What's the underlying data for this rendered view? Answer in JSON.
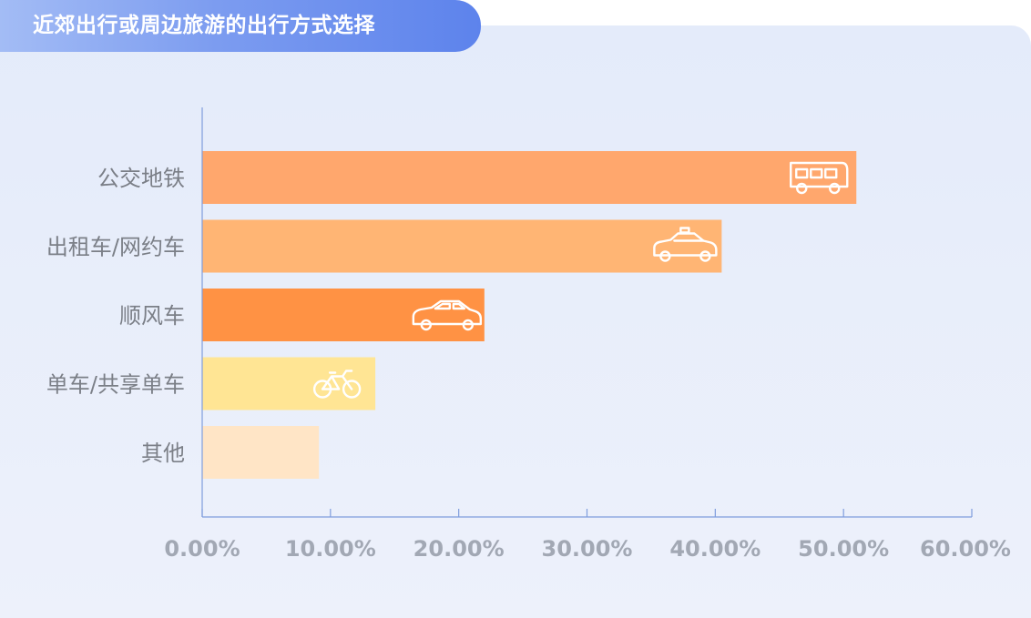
{
  "chart_data": {
    "type": "bar",
    "orientation": "horizontal",
    "title": "近郊出行或周边旅游的出行方式选择",
    "categories": [
      "公交地铁",
      "出租车/网约车",
      "顺风车",
      "单车/共享单车",
      "其他"
    ],
    "values": [
      51,
      40.5,
      22,
      13.5,
      9.1
    ],
    "xlim": [
      0,
      60
    ],
    "ticks": [
      0,
      10,
      20,
      30,
      40,
      50,
      60
    ],
    "tick_labels": [
      "0.00%",
      "10.00%",
      "20.00%",
      "30.00%",
      "40.00%",
      "50.00%",
      "60.00%"
    ],
    "bar_colors": [
      "#ffa76d",
      "#ffb574",
      "#ff9244",
      "#ffe594",
      "#ffe5c6"
    ],
    "bar_icons": [
      "bus-icon",
      "taxi-icon",
      "car-icon",
      "bicycle-icon",
      ""
    ],
    "grid": false,
    "legend": "none"
  }
}
